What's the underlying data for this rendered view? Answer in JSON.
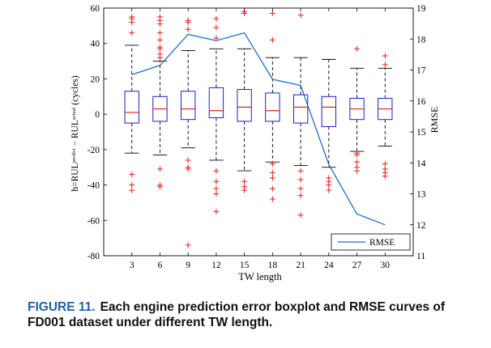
{
  "chart_data": {
    "type": "boxplot",
    "xlabel": "TW length",
    "ylabel_left": "h=RUL",
    "ylabel_left_sup1": "predict",
    "ylabel_left_mid": " − RUL",
    "ylabel_left_sup2": "actual",
    "ylabel_left_tail": " (cycles)",
    "ylabel_right": "RMSE",
    "ylim": [
      -80,
      60
    ],
    "yticks": [
      -80,
      -60,
      -40,
      -20,
      0,
      20,
      40,
      60
    ],
    "y2lim": [
      11,
      19
    ],
    "y2ticks": [
      11,
      12,
      13,
      14,
      15,
      16,
      17,
      18,
      19
    ],
    "categories": [
      "3",
      "6",
      "9",
      "12",
      "15",
      "18",
      "21",
      "24",
      "27",
      "30"
    ],
    "boxes": [
      {
        "q1": -5,
        "median": 1,
        "q3": 13,
        "whisker_low": -22,
        "whisker_high": 39,
        "outliers": [
          -34,
          -40,
          -43,
          46,
          52,
          54,
          55
        ]
      },
      {
        "q1": -4,
        "median": 3,
        "q3": 10,
        "whisker_low": -23,
        "whisker_high": 30,
        "outliers": [
          -31,
          -40,
          -41,
          32,
          34,
          37,
          38,
          42,
          46,
          51,
          53,
          55
        ]
      },
      {
        "q1": -3,
        "median": 3,
        "q3": 13,
        "whisker_low": -19,
        "whisker_high": 36,
        "outliers": [
          -26,
          -30,
          -31,
          -74,
          48,
          52,
          53
        ]
      },
      {
        "q1": -2,
        "median": 2,
        "q3": 15,
        "whisker_low": -26,
        "whisker_high": 37,
        "outliers": [
          -32,
          -38,
          -42,
          -45,
          -55,
          43,
          49,
          54
        ]
      },
      {
        "q1": -4,
        "median": 4,
        "q3": 14,
        "whisker_low": -32,
        "whisker_high": 37,
        "outliers": [
          -38,
          -41,
          -43,
          57,
          58
        ]
      },
      {
        "q1": -4,
        "median": 2,
        "q3": 12,
        "whisker_low": -27,
        "whisker_high": 32,
        "outliers": [
          -28,
          -33,
          -36,
          -42,
          -48,
          42,
          57
        ]
      },
      {
        "q1": -5,
        "median": 4,
        "q3": 11,
        "whisker_low": -29,
        "whisker_high": 32,
        "outliers": [
          -32,
          -37,
          -42,
          -46,
          -57,
          56
        ]
      },
      {
        "q1": -7,
        "median": 4,
        "q3": 10,
        "whisker_low": -30,
        "whisker_high": 31,
        "outliers": [
          -36,
          -38,
          -40,
          -43
        ]
      },
      {
        "q1": -3,
        "median": 3,
        "q3": 9,
        "whisker_low": -21,
        "whisker_high": 26,
        "outliers": [
          -22,
          -23,
          -27,
          -30,
          -32,
          37
        ]
      },
      {
        "q1": -3,
        "median": 3,
        "q3": 9,
        "whisker_low": -18,
        "whisker_high": 26,
        "outliers": [
          -28,
          -31,
          -33,
          -35,
          28,
          33
        ]
      }
    ],
    "series": [
      {
        "name": "RMSE",
        "axis": "right",
        "values": [
          16.85,
          17.15,
          18.15,
          17.95,
          18.2,
          16.7,
          16.5,
          13.95,
          12.35,
          12
        ]
      }
    ],
    "legend_position": "bottom-right",
    "grid": false,
    "colors": {
      "box": "#1f1fd1",
      "median": "#e8201e",
      "whisker": "#000000",
      "outlier": "#e8201e",
      "rmse": "#1f6ec8"
    }
  },
  "caption": {
    "label": "FIGURE 11.",
    "text": "Each engine prediction error boxplot and RMSE curves of FD001 dataset under different TW length."
  }
}
